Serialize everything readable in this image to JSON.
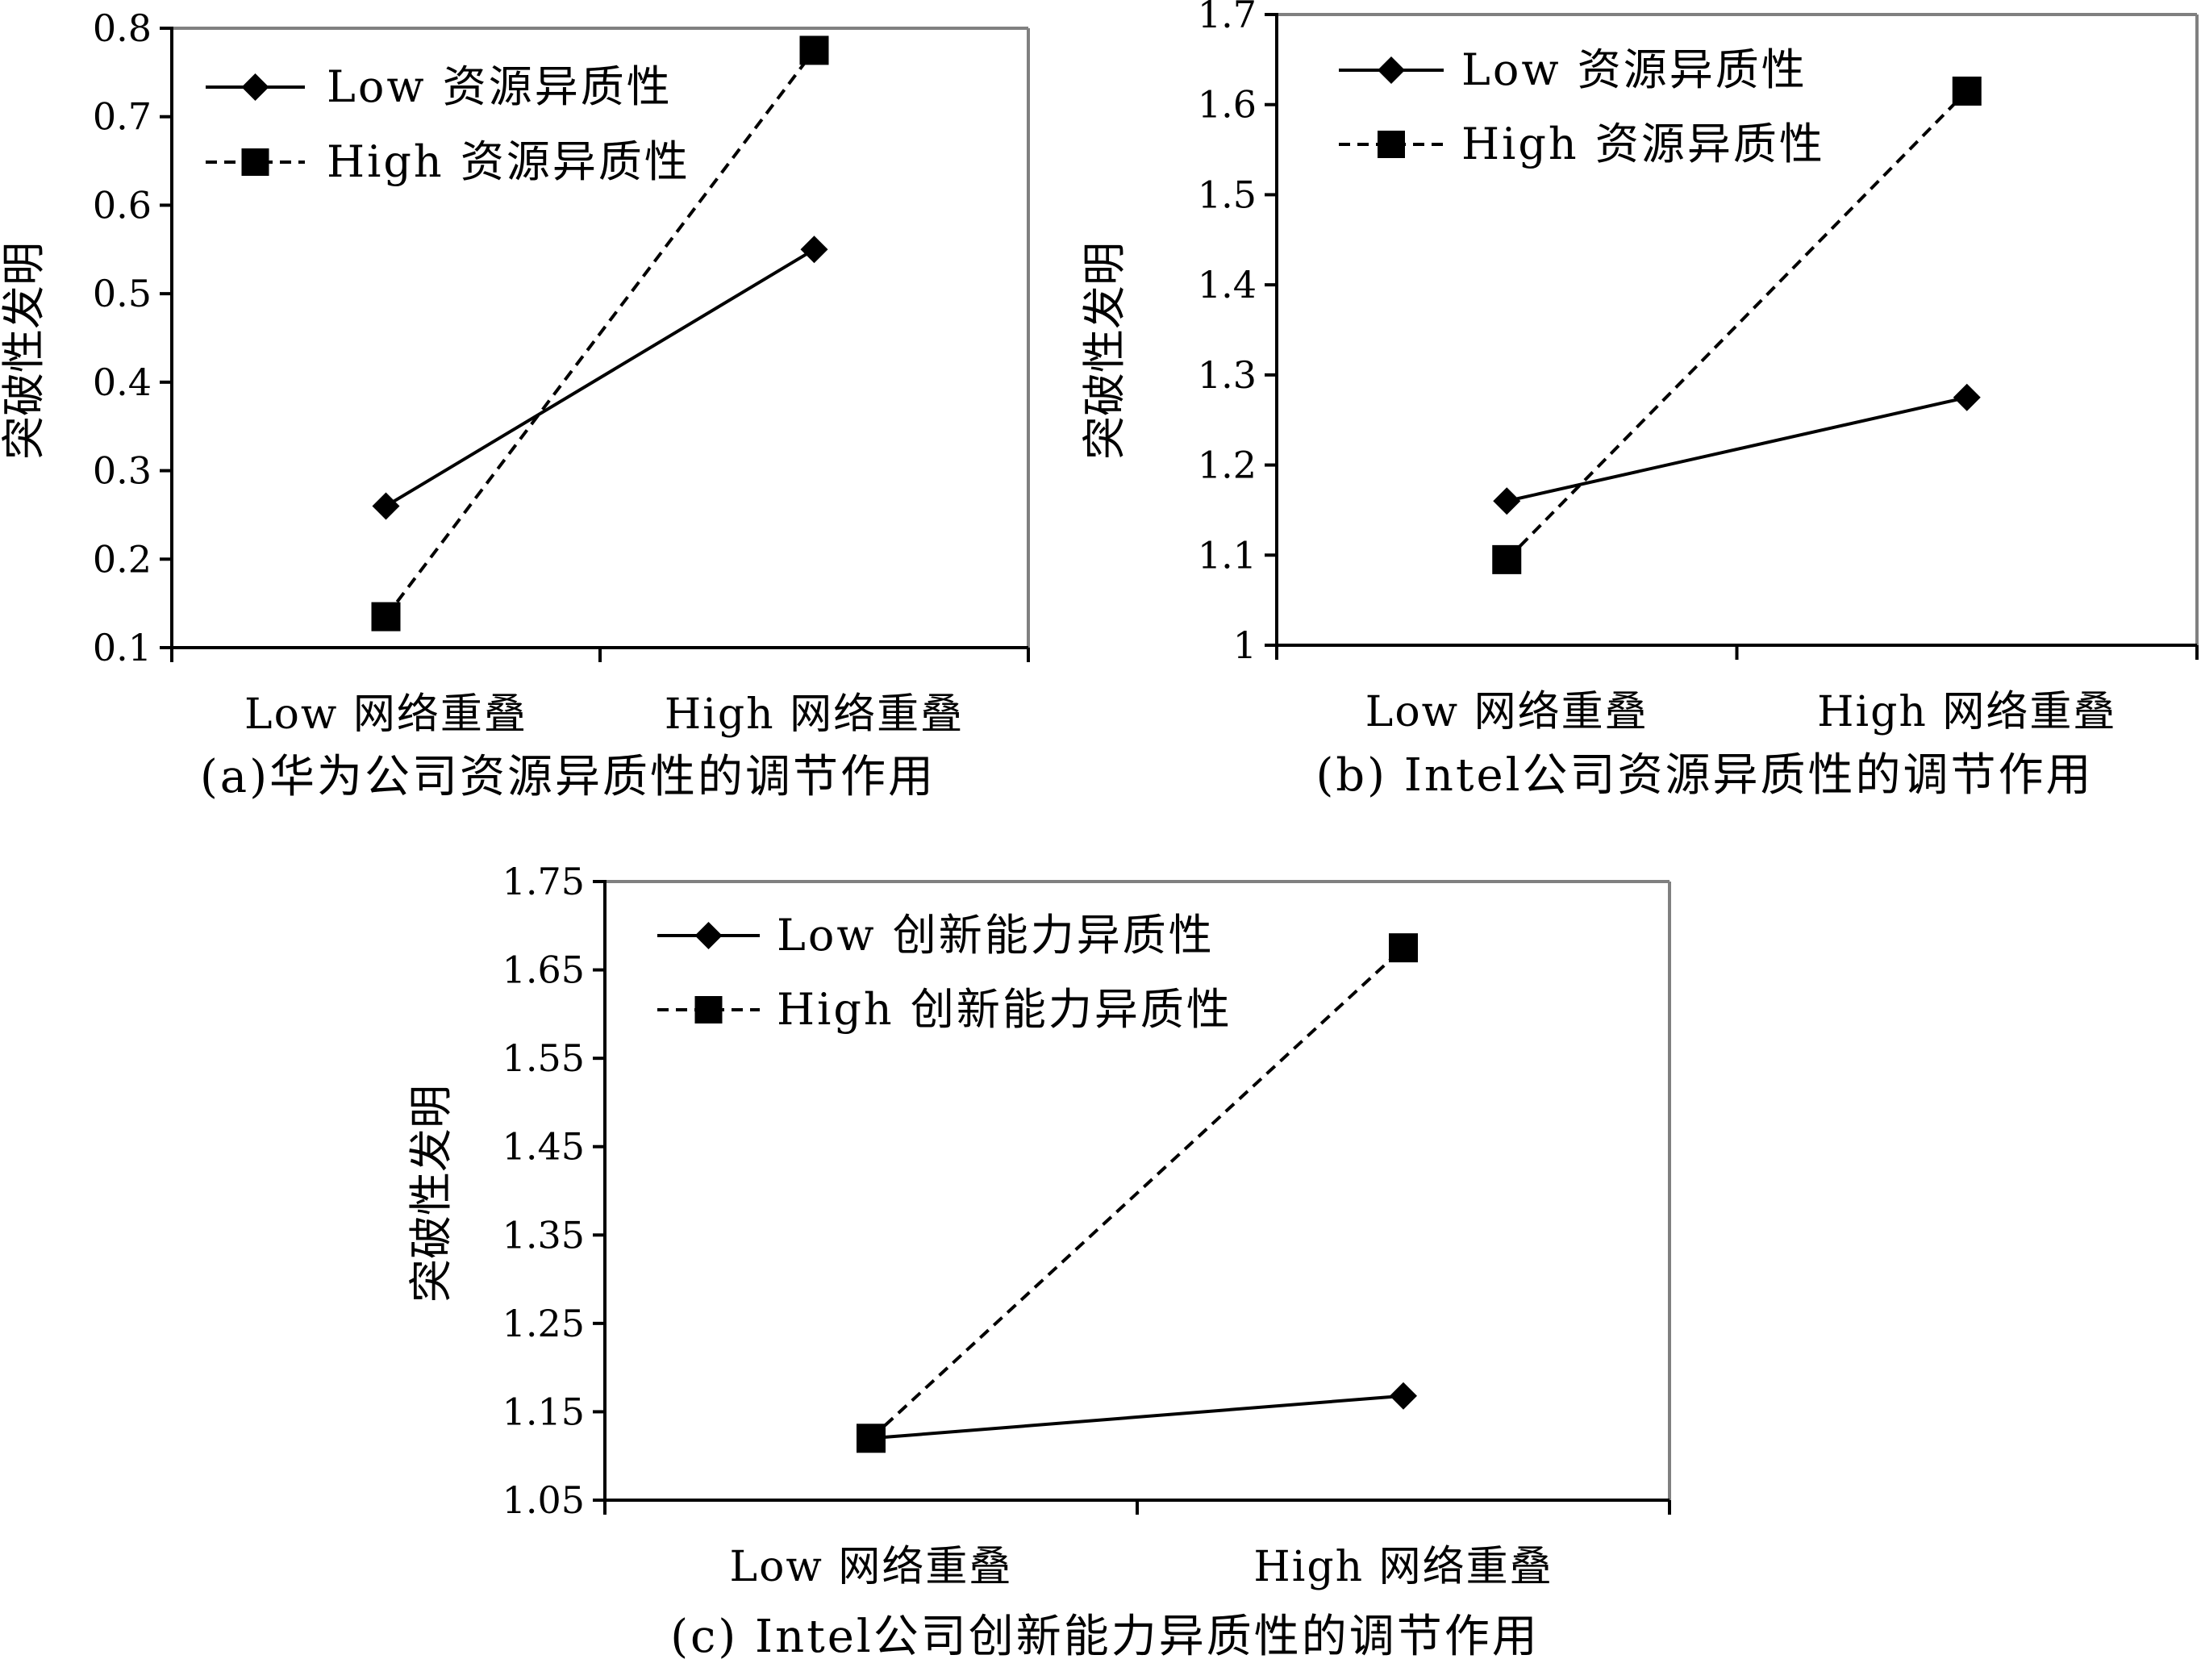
{
  "chart_data": [
    {
      "type": "line",
      "caption": "(a)华为公司资源异质性的调节作用",
      "ylabel": "突破性发明",
      "categories": [
        "Low 网络重叠",
        "High 网络重叠"
      ],
      "ylim": [
        0.1,
        0.8
      ],
      "yticks": [
        "0.1",
        "0.2",
        "0.3",
        "0.4",
        "0.5",
        "0.6",
        "0.7",
        "0.8"
      ],
      "legend_position": "top-left",
      "series": [
        {
          "name": "Low 资源异质性",
          "marker": "diamond",
          "line": "solid",
          "values": [
            0.26,
            0.55
          ]
        },
        {
          "name": "High 资源异质性",
          "marker": "square",
          "line": "dashed",
          "values": [
            0.135,
            0.775
          ]
        }
      ]
    },
    {
      "type": "line",
      "caption": "(b) Intel公司资源异质性的调节作用",
      "ylabel": "突破性发明",
      "categories": [
        "Low 网络重叠",
        "High 网络重叠"
      ],
      "ylim": [
        1.0,
        1.7
      ],
      "yticks": [
        "1",
        "1.1",
        "1.2",
        "1.3",
        "1.4",
        "1.5",
        "1.6",
        "1.7"
      ],
      "legend_position": "top-left",
      "series": [
        {
          "name": "Low 资源异质性",
          "marker": "diamond",
          "line": "solid",
          "values": [
            1.16,
            1.275
          ]
        },
        {
          "name": "High 资源异质性",
          "marker": "square",
          "line": "dashed",
          "values": [
            1.095,
            1.615
          ]
        }
      ]
    },
    {
      "type": "line",
      "caption": "(c) Intel公司创新能力异质性的调节作用",
      "ylabel": "突破性发明",
      "categories": [
        "Low 网络重叠",
        "High 网络重叠"
      ],
      "ylim": [
        1.05,
        1.75
      ],
      "yticks": [
        "1.05",
        "1.15",
        "1.25",
        "1.35",
        "1.45",
        "1.55",
        "1.65",
        "1.75"
      ],
      "legend_position": "top-left",
      "series": [
        {
          "name": "Low 创新能力异质性",
          "marker": "diamond",
          "line": "solid",
          "values": [
            1.12,
            1.168
          ]
        },
        {
          "name": "High 创新能力异质性",
          "marker": "square",
          "line": "dashed",
          "values": [
            1.12,
            1.675
          ]
        }
      ]
    }
  ]
}
